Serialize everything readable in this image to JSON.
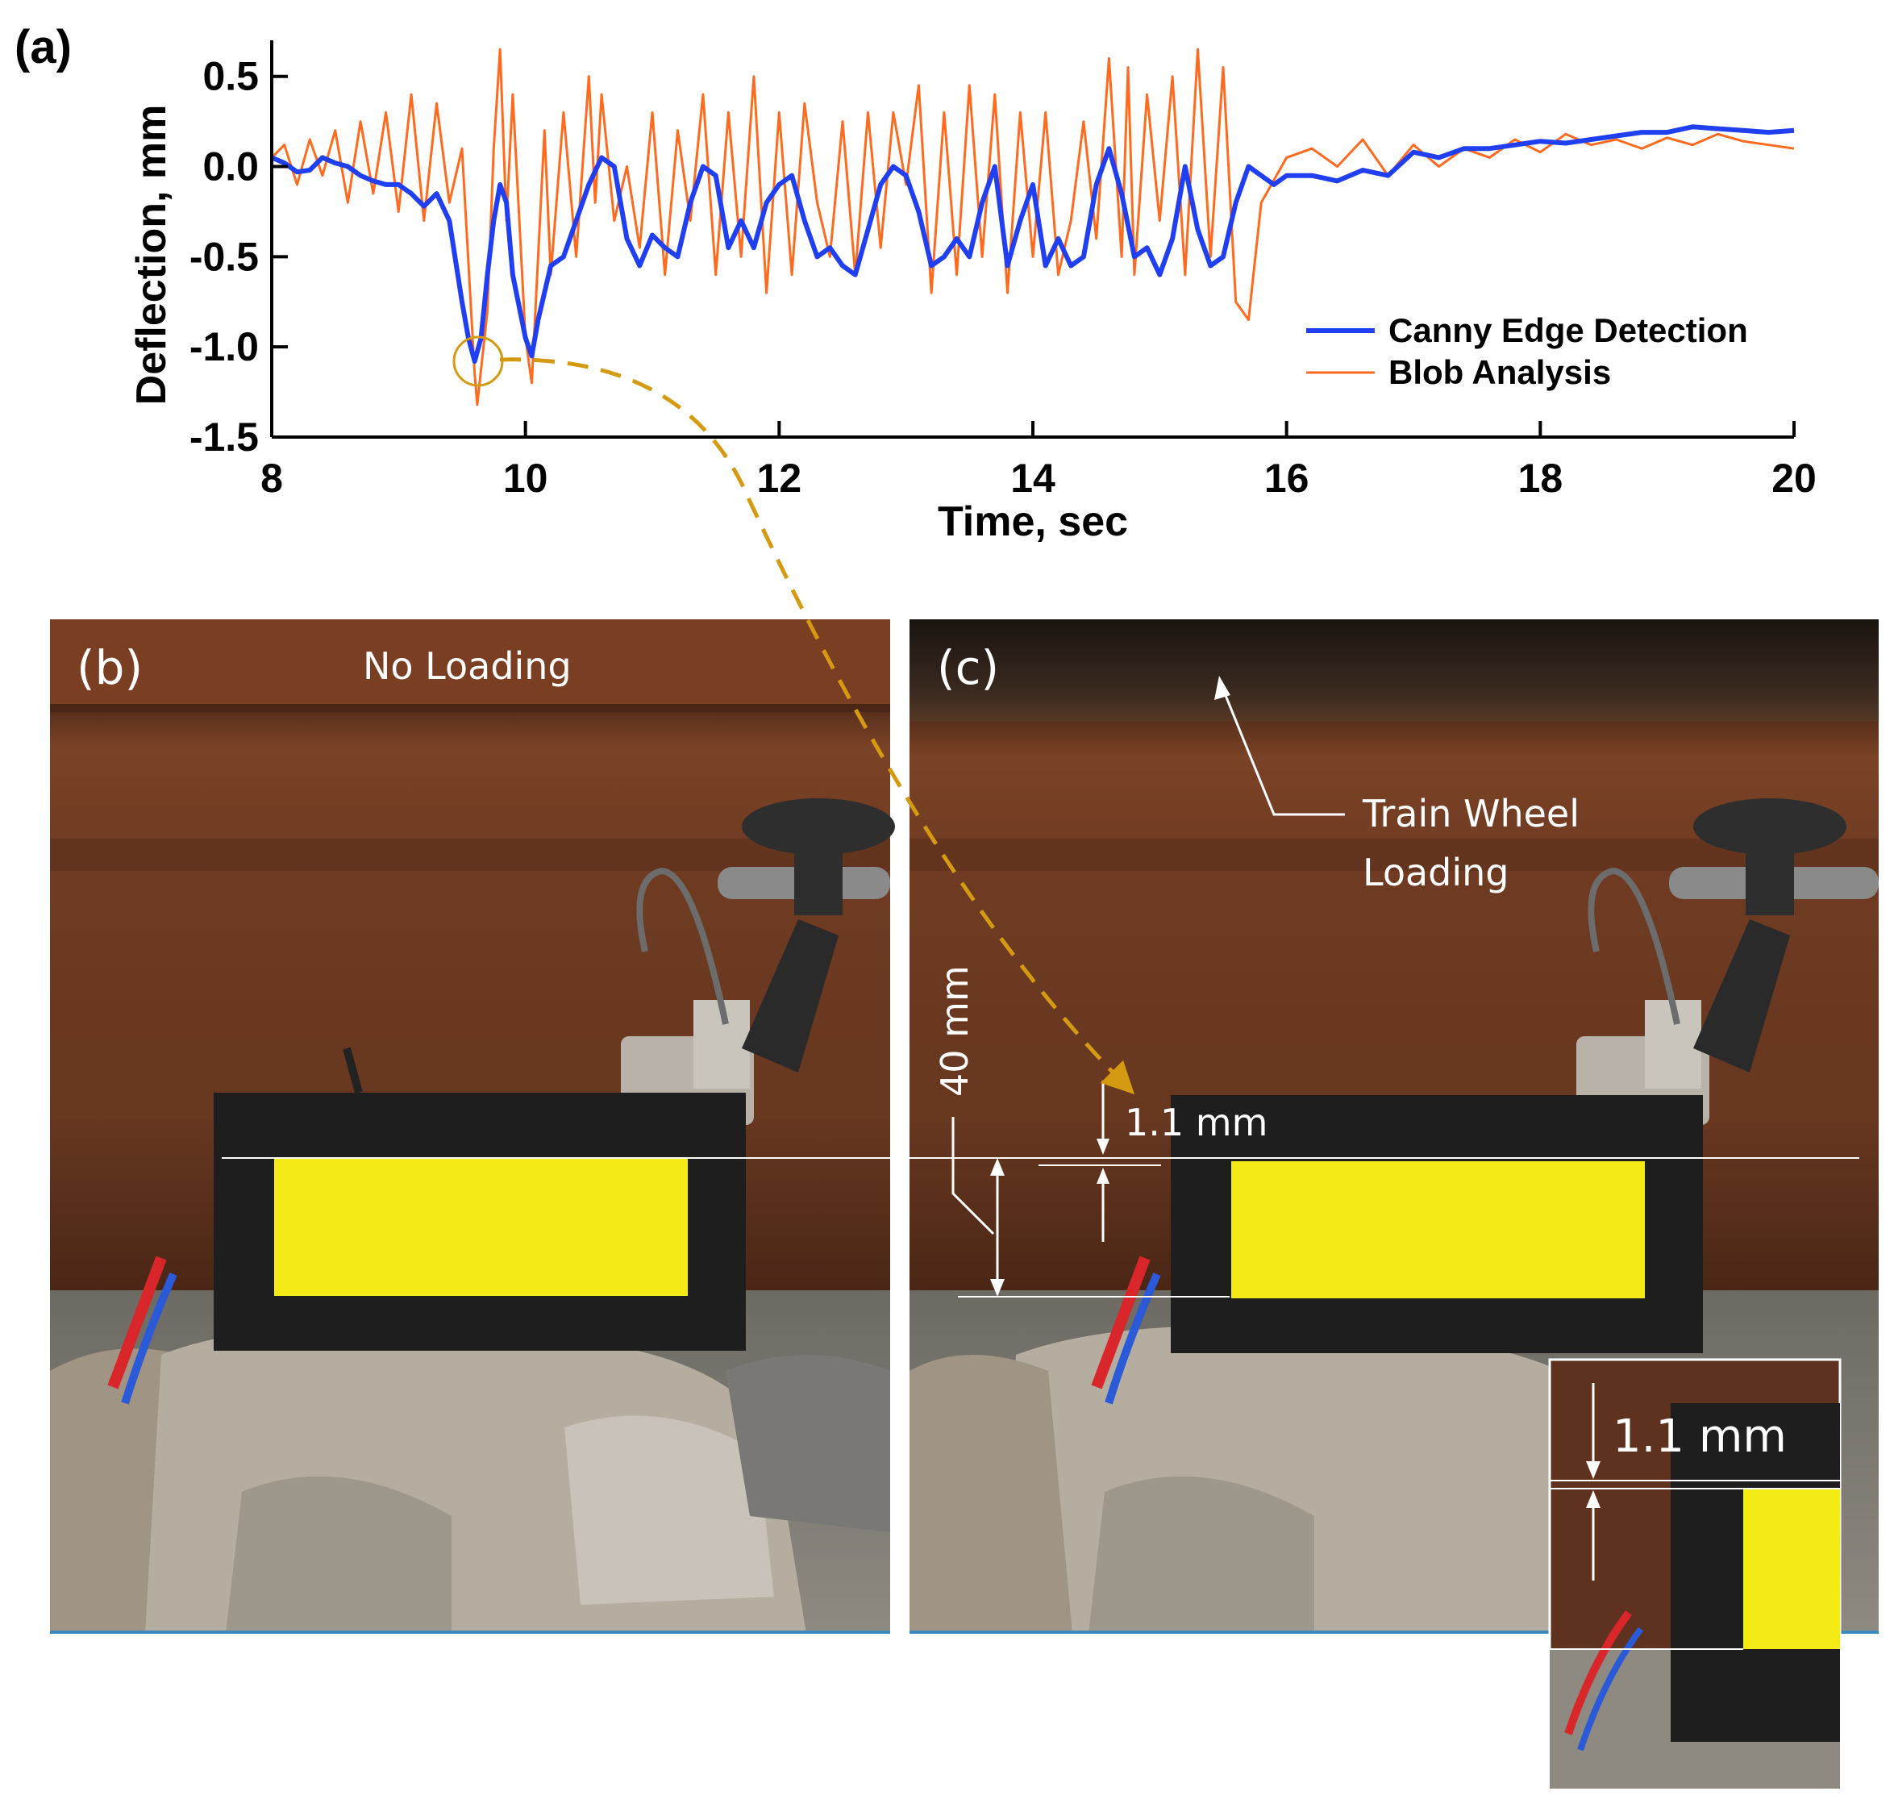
{
  "panel_a_label": "(a)",
  "chart_data": {
    "type": "line",
    "xlabel": "Time, sec",
    "ylabel": "Deflection, mm",
    "xlim": [
      8,
      20
    ],
    "ylim": [
      -1.5,
      0.7
    ],
    "xticks": [
      8,
      10,
      12,
      14,
      16,
      18,
      20
    ],
    "yticks": [
      -1.5,
      -1.0,
      -0.5,
      0.0,
      0.5
    ],
    "ytick_labels": [
      "-1.5",
      "-1.0",
      "-0.5",
      "0.0",
      "0.5"
    ],
    "legend_position": "bottom-right",
    "grid": false,
    "series": [
      {
        "name": "Canny Edge Detection",
        "color": "#1f3ff0",
        "x": [
          8.0,
          8.1,
          8.2,
          8.3,
          8.4,
          8.5,
          8.6,
          8.7,
          8.8,
          8.9,
          9.0,
          9.1,
          9.2,
          9.3,
          9.4,
          9.5,
          9.55,
          9.6,
          9.65,
          9.7,
          9.75,
          9.8,
          9.85,
          9.9,
          10.0,
          10.05,
          10.1,
          10.2,
          10.3,
          10.4,
          10.5,
          10.6,
          10.7,
          10.8,
          10.9,
          11.0,
          11.1,
          11.2,
          11.3,
          11.4,
          11.5,
          11.6,
          11.7,
          11.8,
          11.9,
          12.0,
          12.1,
          12.2,
          12.3,
          12.4,
          12.5,
          12.6,
          12.7,
          12.8,
          12.9,
          13.0,
          13.1,
          13.2,
          13.3,
          13.4,
          13.5,
          13.6,
          13.7,
          13.8,
          13.9,
          14.0,
          14.1,
          14.2,
          14.3,
          14.4,
          14.5,
          14.6,
          14.7,
          14.8,
          14.9,
          15.0,
          15.1,
          15.2,
          15.3,
          15.4,
          15.5,
          15.6,
          15.7,
          15.8,
          15.9,
          16.0,
          16.2,
          16.4,
          16.6,
          16.8,
          17.0,
          17.2,
          17.4,
          17.6,
          17.8,
          18.0,
          18.2,
          18.4,
          18.6,
          18.8,
          19.0,
          19.2,
          19.4,
          19.6,
          19.8,
          20.0
        ],
        "values": [
          0.05,
          0.02,
          -0.03,
          -0.02,
          0.05,
          0.02,
          0.0,
          -0.05,
          -0.08,
          -0.1,
          -0.1,
          -0.15,
          -0.22,
          -0.15,
          -0.3,
          -0.75,
          -0.95,
          -1.08,
          -0.95,
          -0.6,
          -0.3,
          -0.1,
          -0.2,
          -0.6,
          -0.95,
          -1.05,
          -0.85,
          -0.55,
          -0.5,
          -0.3,
          -0.1,
          0.05,
          0.0,
          -0.4,
          -0.55,
          -0.38,
          -0.45,
          -0.5,
          -0.2,
          0.0,
          -0.05,
          -0.45,
          -0.3,
          -0.45,
          -0.2,
          -0.1,
          -0.05,
          -0.3,
          -0.5,
          -0.45,
          -0.55,
          -0.6,
          -0.35,
          -0.1,
          0.0,
          -0.05,
          -0.25,
          -0.55,
          -0.5,
          -0.4,
          -0.5,
          -0.2,
          0.0,
          -0.55,
          -0.3,
          -0.1,
          -0.55,
          -0.4,
          -0.55,
          -0.5,
          -0.1,
          0.1,
          -0.15,
          -0.5,
          -0.45,
          -0.6,
          -0.4,
          0.0,
          -0.35,
          -0.55,
          -0.5,
          -0.2,
          0.0,
          -0.05,
          -0.1,
          -0.05,
          -0.05,
          -0.08,
          -0.02,
          -0.05,
          0.08,
          0.05,
          0.1,
          0.1,
          0.12,
          0.14,
          0.13,
          0.15,
          0.17,
          0.19,
          0.19,
          0.22,
          0.21,
          0.2,
          0.19,
          0.2
        ]
      },
      {
        "name": "Blob Analysis",
        "color": "#ff6a1f",
        "x": [
          8.0,
          8.1,
          8.2,
          8.3,
          8.4,
          8.5,
          8.6,
          8.7,
          8.8,
          8.9,
          9.0,
          9.1,
          9.2,
          9.3,
          9.4,
          9.5,
          9.6,
          9.62,
          9.7,
          9.75,
          9.8,
          9.85,
          9.9,
          10.0,
          10.05,
          10.1,
          10.15,
          10.2,
          10.3,
          10.4,
          10.5,
          10.55,
          10.6,
          10.7,
          10.8,
          10.9,
          11.0,
          11.1,
          11.2,
          11.3,
          11.4,
          11.5,
          11.6,
          11.7,
          11.8,
          11.9,
          12.0,
          12.1,
          12.2,
          12.3,
          12.4,
          12.5,
          12.6,
          12.7,
          12.8,
          12.9,
          13.0,
          13.1,
          13.2,
          13.3,
          13.4,
          13.5,
          13.6,
          13.7,
          13.8,
          13.9,
          14.0,
          14.1,
          14.2,
          14.3,
          14.4,
          14.5,
          14.6,
          14.7,
          14.75,
          14.8,
          14.9,
          15.0,
          15.1,
          15.2,
          15.3,
          15.4,
          15.5,
          15.6,
          15.7,
          15.8,
          16.0,
          16.2,
          16.4,
          16.6,
          16.8,
          17.0,
          17.2,
          17.4,
          17.6,
          17.8,
          18.0,
          18.2,
          18.4,
          18.6,
          18.8,
          19.0,
          19.2,
          19.4,
          19.6,
          19.8,
          20.0
        ],
        "values": [
          0.05,
          0.12,
          -0.1,
          0.15,
          -0.05,
          0.2,
          -0.2,
          0.25,
          -0.15,
          0.3,
          -0.25,
          0.4,
          -0.3,
          0.35,
          -0.2,
          0.1,
          -1.15,
          -1.32,
          -0.8,
          0.1,
          0.65,
          -0.3,
          0.4,
          -0.95,
          -1.2,
          -0.5,
          0.2,
          -0.6,
          0.3,
          -0.5,
          0.5,
          -0.2,
          0.4,
          -0.3,
          0.0,
          -0.45,
          0.3,
          -0.6,
          0.2,
          -0.3,
          0.4,
          -0.6,
          0.3,
          -0.5,
          0.5,
          -0.7,
          0.3,
          -0.6,
          0.35,
          -0.2,
          -0.5,
          0.25,
          -0.6,
          0.3,
          -0.45,
          0.3,
          -0.1,
          0.45,
          -0.7,
          0.3,
          -0.6,
          0.45,
          -0.5,
          0.4,
          -0.7,
          0.3,
          -0.5,
          0.3,
          -0.6,
          -0.3,
          0.25,
          -0.4,
          0.6,
          -0.5,
          0.55,
          -0.6,
          0.4,
          -0.3,
          0.5,
          -0.6,
          0.65,
          -0.5,
          0.55,
          -0.75,
          -0.85,
          -0.2,
          0.05,
          0.1,
          0.0,
          0.15,
          -0.05,
          0.12,
          0.0,
          0.1,
          0.05,
          0.15,
          0.08,
          0.18,
          0.12,
          0.15,
          0.1,
          0.16,
          0.12,
          0.18,
          0.14,
          0.12,
          0.1
        ]
      }
    ]
  },
  "panel_b": {
    "label": "(b)",
    "caption": "No Loading"
  },
  "panel_c": {
    "label": "(c)",
    "wheel_label_line1": "Train Wheel",
    "wheel_label_line2": "Loading",
    "dim_40mm": "40 mm",
    "dim_1_1mm": "1.1 mm",
    "inset_dim": "1.1 mm"
  },
  "colors": {
    "rail": "#6b3a22",
    "rail_dark": "#4a2818",
    "target_black": "#1e1e1e",
    "target_yellow": "#f4ea16",
    "ballast": "#9a9288",
    "arrow": "#d49a12"
  }
}
